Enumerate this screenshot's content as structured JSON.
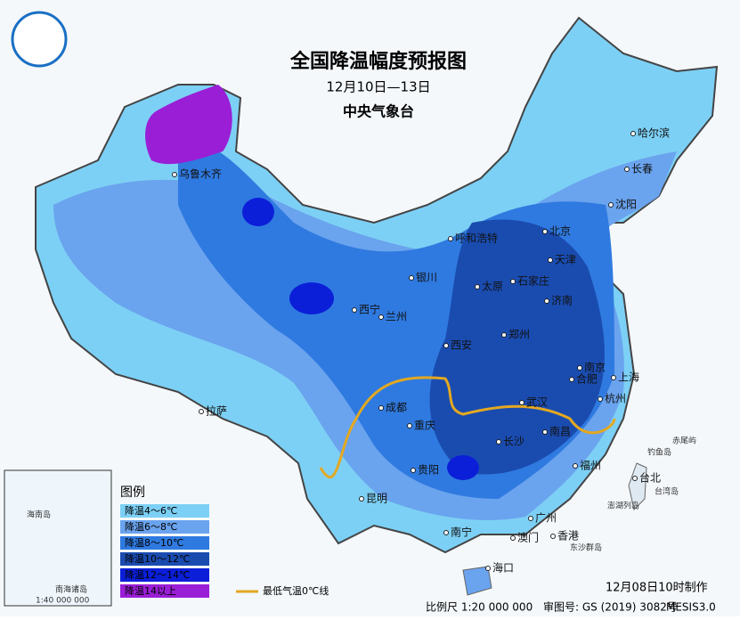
{
  "header": {
    "title": "全国降温幅度预报图",
    "date": "12月10日—13日",
    "issuer": "中央气象台"
  },
  "cities": [
    "乌鲁木齐",
    "哈尔滨",
    "长春",
    "沈阳",
    "北京",
    "天津",
    "呼和浩特",
    "石家庄",
    "太原",
    "银川",
    "济南",
    "西宁",
    "兰州",
    "郑州",
    "西安",
    "南京",
    "合肥",
    "上海",
    "武汉",
    "杭州",
    "成都",
    "重庆",
    "南昌",
    "长沙",
    "拉萨",
    "贵阳",
    "福州",
    "台北",
    "昆明",
    "广州",
    "南宁",
    "澳门",
    "香港",
    "海口"
  ],
  "islands": [
    "赤尾屿",
    "钓鱼岛",
    "台湾岛",
    "澎湖列岛",
    "东沙群岛"
  ],
  "legend": {
    "title": "图例",
    "items": [
      {
        "label": "降温4～6℃",
        "color": "#7dd0f5"
      },
      {
        "label": "降温6～8℃",
        "color": "#6aa3ee"
      },
      {
        "label": "降温8～10℃",
        "color": "#2f7ae0"
      },
      {
        "label": "降温10～12℃",
        "color": "#1a4cb0"
      },
      {
        "label": "降温12～14℃",
        "color": "#0b1fd8"
      },
      {
        "label": "降温14以上",
        "color": "#9a1ed6"
      }
    ],
    "line_label": "最低气温0℃线",
    "line_color": "#e3a821"
  },
  "inset": {
    "title": "南海诸岛",
    "island": "海南岛",
    "scale": "1:40 000 000"
  },
  "footer": {
    "scale": "比例尺 1:20 000 000",
    "approval": "审图号: GS (2019) 3082号",
    "system": "MESIS3.0",
    "made": "12月08日10时制作"
  }
}
